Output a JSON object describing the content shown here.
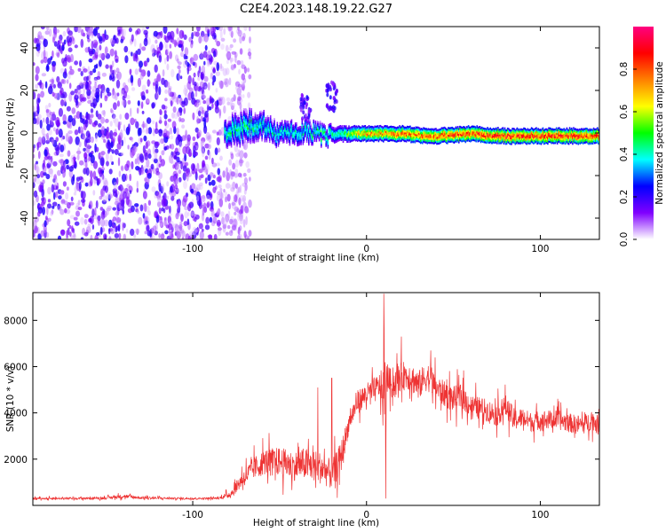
{
  "title": "C2E4.2023.148.19.22.G27",
  "chart_data": [
    {
      "type": "heatmap",
      "xlabel": "Height of straight line (km)",
      "ylabel": "Frequency (Hz)",
      "xlim": [
        -192,
        134
      ],
      "ylim": [
        -50,
        50
      ],
      "xticks": [
        -100,
        0,
        100
      ],
      "yticks": [
        -40,
        -20,
        0,
        20,
        40
      ],
      "colorbar": {
        "label": "Normalized spectral amplitude",
        "range": [
          0,
          1
        ],
        "ticks": [
          0.0,
          0.2,
          0.4,
          0.6,
          0.8
        ],
        "colors": [
          "#ffffff",
          "#8000ff",
          "#0000ff",
          "#00ffff",
          "#00ff00",
          "#ffff00",
          "#ff8000",
          "#ff0000",
          "#ff0080"
        ]
      },
      "noise_region": {
        "x": [
          -192,
          -75
        ],
        "y": [
          -50,
          50
        ],
        "level": 0.2
      },
      "ridge": [
        {
          "x": -82,
          "y": 1,
          "half_width": 6,
          "peak": 0.45
        },
        {
          "x": -75,
          "y": 2,
          "half_width": 7,
          "peak": 0.5
        },
        {
          "x": -68,
          "y": 4,
          "half_width": 7,
          "peak": 0.5
        },
        {
          "x": -60,
          "y": 4,
          "half_width": 6,
          "peak": 0.45
        },
        {
          "x": -52,
          "y": 0,
          "half_width": 5,
          "peak": 0.45
        },
        {
          "x": -44,
          "y": 0,
          "half_width": 5,
          "peak": 0.45
        },
        {
          "x": -36,
          "y": 2,
          "half_width": 5,
          "peak": 0.45
        },
        {
          "x": -25,
          "y": -1,
          "half_width": 4,
          "peak": 0.5
        },
        {
          "x": -15,
          "y": 0,
          "half_width": 4,
          "peak": 0.5
        },
        {
          "x": -5,
          "y": 0,
          "half_width": 4,
          "peak": 0.75
        },
        {
          "x": 0,
          "y": 0,
          "half_width": 4,
          "peak": 0.8
        },
        {
          "x": 20,
          "y": 0,
          "half_width": 4,
          "peak": 0.85
        },
        {
          "x": 40,
          "y": -1,
          "half_width": 4,
          "peak": 0.9
        },
        {
          "x": 60,
          "y": 0,
          "half_width": 4,
          "peak": 0.95
        },
        {
          "x": 80,
          "y": -1,
          "half_width": 4,
          "peak": 0.95
        },
        {
          "x": 100,
          "y": -1,
          "half_width": 4,
          "peak": 0.95
        },
        {
          "x": 120,
          "y": -1,
          "half_width": 4,
          "peak": 0.95
        },
        {
          "x": 134,
          "y": -1,
          "half_width": 4,
          "peak": 0.95
        }
      ],
      "spurs": [
        {
          "x": -35,
          "y": 12,
          "peak": 0.25
        },
        {
          "x": -20,
          "y": 18,
          "peak": 0.25
        }
      ]
    },
    {
      "type": "line",
      "xlabel": "Height of straight line (km)",
      "ylabel": "SNR (10 * v/v)",
      "xlim": [
        -192,
        134
      ],
      "ylim": [
        0,
        9200
      ],
      "xticks": [
        -100,
        0,
        100
      ],
      "yticks": [
        2000,
        4000,
        6000,
        8000
      ],
      "series": [
        {
          "color": "#ee3333",
          "x": [
            -192,
            -170,
            -150,
            -140,
            -130,
            -110,
            -95,
            -85,
            -78,
            -72,
            -65,
            -58,
            -50,
            -42,
            -36,
            -30,
            -25,
            -20,
            -15,
            -10,
            -5,
            0,
            5,
            8,
            10,
            12,
            15,
            20,
            25,
            30,
            35,
            40,
            45,
            50,
            55,
            60,
            65,
            70,
            75,
            80,
            85,
            90,
            95,
            100,
            105,
            110,
            115,
            120,
            125,
            130,
            134
          ],
          "y": [
            300,
            300,
            320,
            400,
            330,
            300,
            300,
            310,
            500,
            1100,
            1600,
            1900,
            1900,
            1700,
            1800,
            1700,
            1600,
            1300,
            2000,
            3600,
            4500,
            4800,
            5000,
            5200,
            4500,
            5500,
            5200,
            5600,
            5600,
            5200,
            5600,
            5100,
            4800,
            4600,
            4700,
            4300,
            4200,
            4100,
            3900,
            4300,
            3700,
            3800,
            3600,
            3700,
            3700,
            3700,
            3600,
            3500,
            3500,
            3700,
            3400
          ],
          "spread": [
            60,
            60,
            80,
            120,
            80,
            60,
            60,
            60,
            250,
            500,
            700,
            800,
            900,
            900,
            1000,
            1000,
            1000,
            900,
            1000,
            600,
            700,
            700,
            800,
            800,
            2500,
            800,
            900,
            900,
            900,
            900,
            900,
            800,
            800,
            800,
            800,
            700,
            700,
            700,
            700,
            700,
            700,
            600,
            600,
            600,
            600,
            600,
            600,
            600,
            600,
            600,
            600
          ],
          "peaks": [
            {
              "x": 10,
              "y": 9150
            },
            {
              "x": 11,
              "y": 300
            },
            {
              "x": 20,
              "y": 7300
            },
            {
              "x": 37,
              "y": 6700
            },
            {
              "x": -20,
              "y": 5500
            },
            {
              "x": -28,
              "y": 5100
            }
          ]
        }
      ]
    }
  ]
}
